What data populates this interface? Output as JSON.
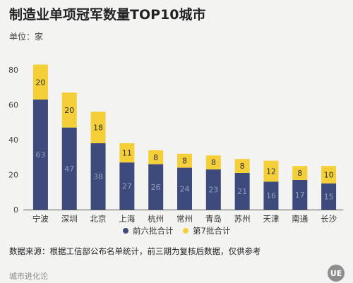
{
  "title": "制造业单项冠军数量TOP10城市",
  "unit_label": "单位：家",
  "source_note": "数据来源：根据工信部公布名单统计，前三期为复核后数据，仅供参考",
  "brand": "城市进化论",
  "logo_text": "UE",
  "colors": {
    "bottom": "#3d4a7c",
    "top": "#f5cf38",
    "axis": "#555555"
  },
  "chart_data": {
    "type": "bar",
    "stacked": true,
    "title": "制造业单项冠军数量TOP10城市",
    "ylabel": "单位：家",
    "ylim": [
      0,
      80
    ],
    "yticks": [
      0,
      20,
      40,
      60,
      80
    ],
    "grid": false,
    "legend_position": "bottom",
    "categories": [
      "宁波",
      "深圳",
      "北京",
      "上海",
      "杭州",
      "常州",
      "青岛",
      "苏州",
      "天津",
      "南通",
      "长沙"
    ],
    "series": [
      {
        "name": "前六批合计",
        "values": [
          63,
          47,
          38,
          27,
          26,
          24,
          23,
          21,
          16,
          17,
          15
        ]
      },
      {
        "name": "第7批合计",
        "values": [
          20,
          20,
          18,
          11,
          8,
          8,
          8,
          8,
          12,
          8,
          10
        ]
      }
    ]
  }
}
